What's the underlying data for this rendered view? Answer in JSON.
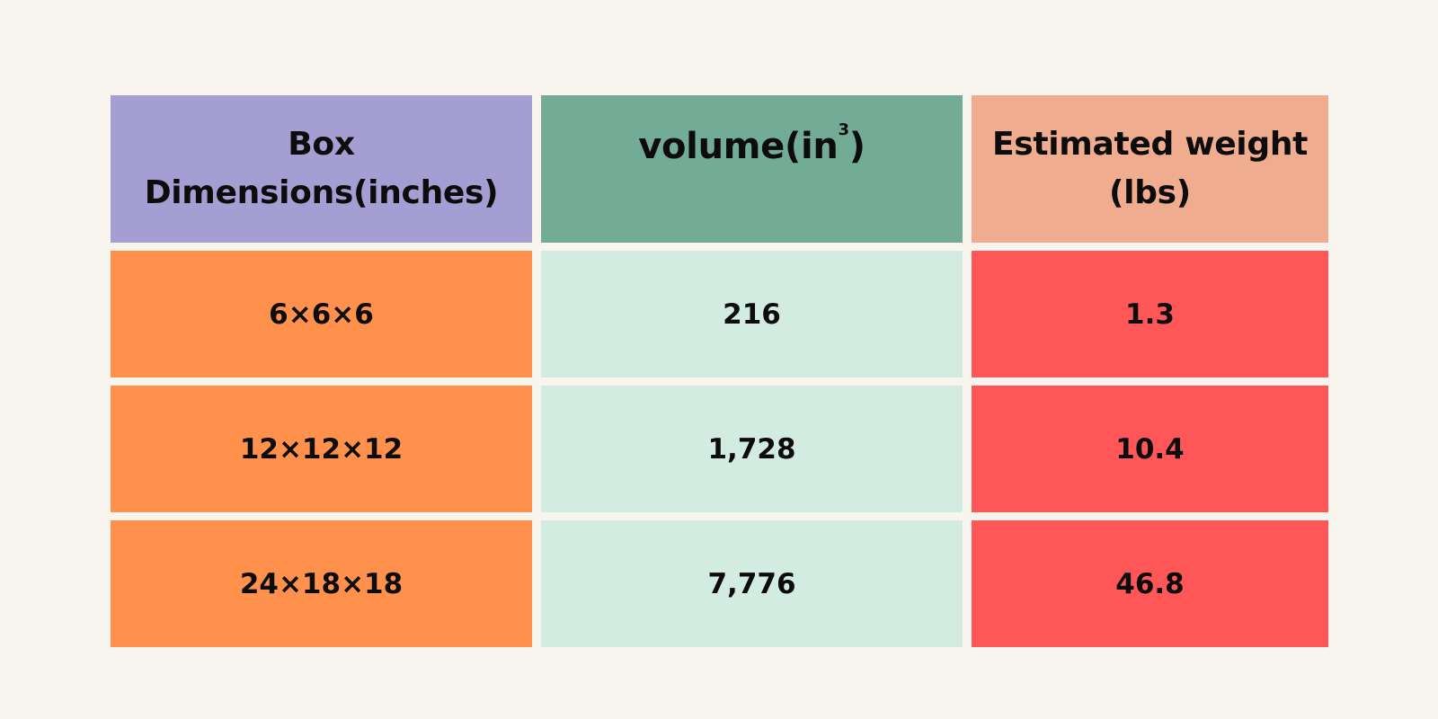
{
  "colors": {
    "background": "#f8f5ee",
    "header": [
      "#a59ed2",
      "#72ac96",
      "#f0ac8f"
    ],
    "body": [
      "#ff914d",
      "#d2ece2",
      "#ff5757"
    ],
    "text": "#0c0c0c"
  },
  "chart_data": {
    "type": "table",
    "columns": [
      {
        "label": "Box Dimensions(inches)"
      },
      {
        "label": "volume(in",
        "sup": "3",
        "suffix": ")"
      },
      {
        "label": "Estimated weight (lbs)"
      }
    ],
    "rows": [
      [
        "6×6×6",
        "216",
        "1.3"
      ],
      [
        "12×12×12",
        "1,728",
        "10.4"
      ],
      [
        "24×18×18",
        "7,776",
        "46.8"
      ]
    ]
  }
}
